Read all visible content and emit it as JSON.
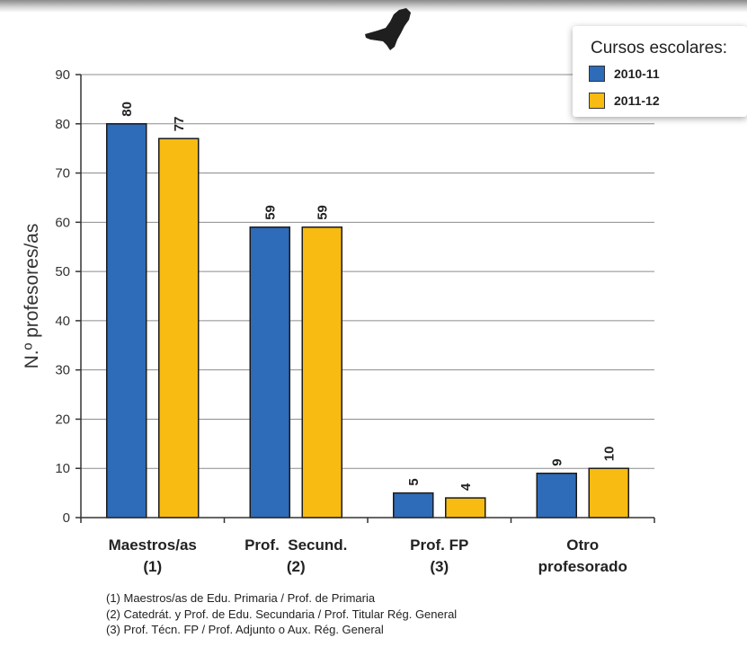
{
  "chart_data": {
    "type": "bar",
    "title": "",
    "xlabel": "",
    "ylabel": "N.º profesores/as",
    "ylim": [
      0,
      90
    ],
    "yticks": [
      0,
      10,
      20,
      30,
      40,
      50,
      60,
      70,
      80,
      90
    ],
    "grid": true,
    "legend_title": "Cursos escolares:",
    "legend_position": "top-right",
    "categories": [
      [
        "Maestros/as",
        "(1)"
      ],
      [
        "Prof.  Secund.",
        "(2)"
      ],
      [
        "Prof. FP",
        "(3)"
      ],
      [
        "Otro",
        "profesorado"
      ]
    ],
    "series": [
      {
        "name": "2010-11",
        "color": "#2e6bb8",
        "values": [
          80,
          59,
          5,
          9
        ]
      },
      {
        "name": "2011-12",
        "color": "#f7bb12",
        "values": [
          77,
          59,
          4,
          10
        ]
      }
    ],
    "footnotes": [
      "(1) Maestros/as de Edu. Primaria / Prof. de Primaria",
      "(2) Catedrát. y Prof. de Edu. Secundaria / Prof. Titular Rég. General",
      "(3) Prof. Técn. FP / Prof. Adjunto o Aux. Rég. General"
    ]
  }
}
